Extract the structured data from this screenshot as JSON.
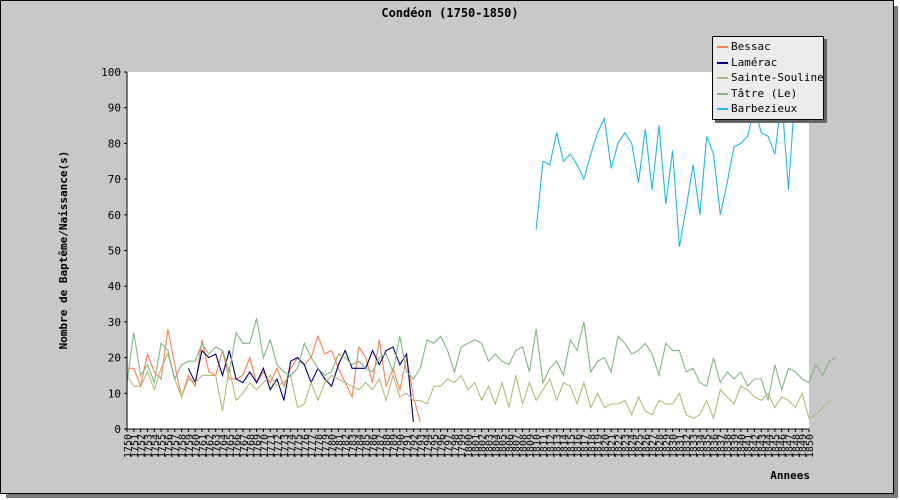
{
  "chart_data": {
    "type": "line",
    "title": "Condéon (1750-1850)",
    "xlabel": "Annees",
    "ylabel": "Nombre de Baptême/Naissance(s)",
    "x_start": 1750,
    "x_end": 1850,
    "ylim": [
      0,
      100
    ],
    "yticks": [
      0,
      10,
      20,
      30,
      40,
      50,
      60,
      70,
      80,
      90,
      100
    ],
    "legend_position": "top-right",
    "series": [
      {
        "name": "Bessac",
        "color": "#ff7f50",
        "start": 1750,
        "values": [
          17,
          17,
          12,
          21,
          16,
          14,
          28,
          18,
          9,
          15,
          12,
          25,
          16,
          15,
          22,
          14,
          14,
          15,
          20,
          13,
          16,
          13,
          17,
          12,
          17,
          20,
          18,
          20,
          26,
          21,
          22,
          17,
          13,
          9,
          23,
          20,
          13,
          25,
          12,
          17,
          11,
          20,
          9,
          2
        ]
      },
      {
        "name": "Lamérac",
        "color": "#000080",
        "start": 1759,
        "values": [
          17,
          13,
          22,
          20,
          21,
          15,
          22,
          14,
          13,
          16,
          13,
          17,
          11,
          14,
          8,
          19,
          20,
          18,
          13,
          17,
          14,
          12,
          18,
          22,
          17,
          17,
          17,
          22,
          18,
          22,
          23,
          18,
          21,
          2
        ]
      },
      {
        "name": "Sainte-Souline",
        "color": "#b8b878",
        "start": 1750,
        "values": [
          15,
          12,
          12,
          16,
          11,
          17,
          21,
          14,
          9,
          14,
          13,
          15,
          15,
          15,
          5,
          17,
          8,
          10,
          13,
          11,
          13,
          15,
          12,
          13,
          15,
          6,
          7,
          13,
          8,
          13,
          15,
          14,
          13,
          12,
          11,
          13,
          11,
          14,
          8,
          15,
          9,
          10,
          8,
          8,
          7,
          12,
          12,
          14,
          13,
          15,
          11,
          13,
          8,
          12,
          7,
          13,
          6,
          15,
          7,
          13,
          8,
          11,
          14,
          8,
          13,
          12,
          7,
          13,
          6,
          10,
          6,
          7,
          7,
          8,
          4,
          9,
          5,
          4,
          8,
          7,
          7,
          10,
          4,
          3,
          4,
          8,
          3,
          11,
          9,
          7,
          12,
          11,
          9,
          8,
          10,
          6,
          9,
          8,
          6,
          10,
          3,
          4,
          6,
          8
        ]
      },
      {
        "name": "Tâtre (Le)",
        "color": "#80b880",
        "start": 1750,
        "values": [
          13,
          27,
          15,
          18,
          13,
          24,
          22,
          14,
          18,
          19,
          19,
          24,
          21,
          23,
          22,
          16,
          27,
          24,
          24,
          31,
          20,
          25,
          18,
          16,
          15,
          17,
          24,
          20,
          17,
          15,
          16,
          21,
          20,
          18,
          19,
          17,
          16,
          20,
          21,
          16,
          26,
          16,
          14,
          17,
          25,
          24,
          26,
          22,
          16,
          23,
          24,
          25,
          24,
          19,
          21,
          19,
          18,
          22,
          23,
          16,
          28,
          13,
          17,
          19,
          15,
          25,
          22,
          30,
          16,
          19,
          20,
          16,
          26,
          24,
          21,
          22,
          24,
          21,
          15,
          24,
          22,
          22,
          16,
          17,
          13,
          12,
          20,
          13,
          16,
          14,
          16,
          12,
          14,
          14,
          8,
          18,
          11,
          17,
          16,
          14,
          13,
          18,
          15,
          19,
          20
        ]
      },
      {
        "name": "Barbezieux",
        "color": "#20b8e8",
        "start": 1810,
        "values": [
          56,
          75,
          74,
          83,
          75,
          77,
          74,
          70,
          77,
          83,
          87,
          73,
          80,
          83,
          80,
          69,
          84,
          67,
          85,
          63,
          78,
          51,
          62,
          74,
          60,
          82,
          77,
          60,
          69,
          79,
          80,
          82,
          90,
          83,
          82,
          77,
          93,
          67,
          96
        ]
      }
    ]
  }
}
